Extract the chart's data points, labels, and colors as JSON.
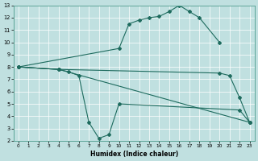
{
  "xlabel": "Humidex (Indice chaleur)",
  "bg_color": "#c0e0e0",
  "line_color": "#1e6b5e",
  "xlim": [
    -0.5,
    23.5
  ],
  "ylim": [
    2,
    13
  ],
  "xticks": [
    0,
    1,
    2,
    3,
    4,
    5,
    6,
    7,
    8,
    9,
    10,
    11,
    12,
    13,
    14,
    15,
    16,
    17,
    18,
    19,
    20,
    21,
    22,
    23
  ],
  "yticks": [
    2,
    3,
    4,
    5,
    6,
    7,
    8,
    9,
    10,
    11,
    12,
    13
  ],
  "lines": [
    {
      "x": [
        0,
        10,
        11,
        12,
        13,
        14,
        15,
        16,
        17,
        18,
        20
      ],
      "y": [
        8,
        9.5,
        11.5,
        11.8,
        12.0,
        12.1,
        12.5,
        13.0,
        12.5,
        12.0,
        10.0
      ]
    },
    {
      "x": [
        0,
        4,
        5,
        6,
        7,
        8,
        9,
        10,
        22,
        23
      ],
      "y": [
        8,
        7.8,
        7.6,
        7.3,
        3.5,
        2.2,
        2.5,
        5.0,
        4.5,
        3.5
      ]
    },
    {
      "x": [
        0,
        4,
        23
      ],
      "y": [
        8,
        7.8,
        3.5
      ]
    },
    {
      "x": [
        0,
        4,
        20,
        21,
        22,
        23
      ],
      "y": [
        8,
        7.8,
        7.5,
        7.3,
        5.5,
        3.5
      ]
    }
  ]
}
